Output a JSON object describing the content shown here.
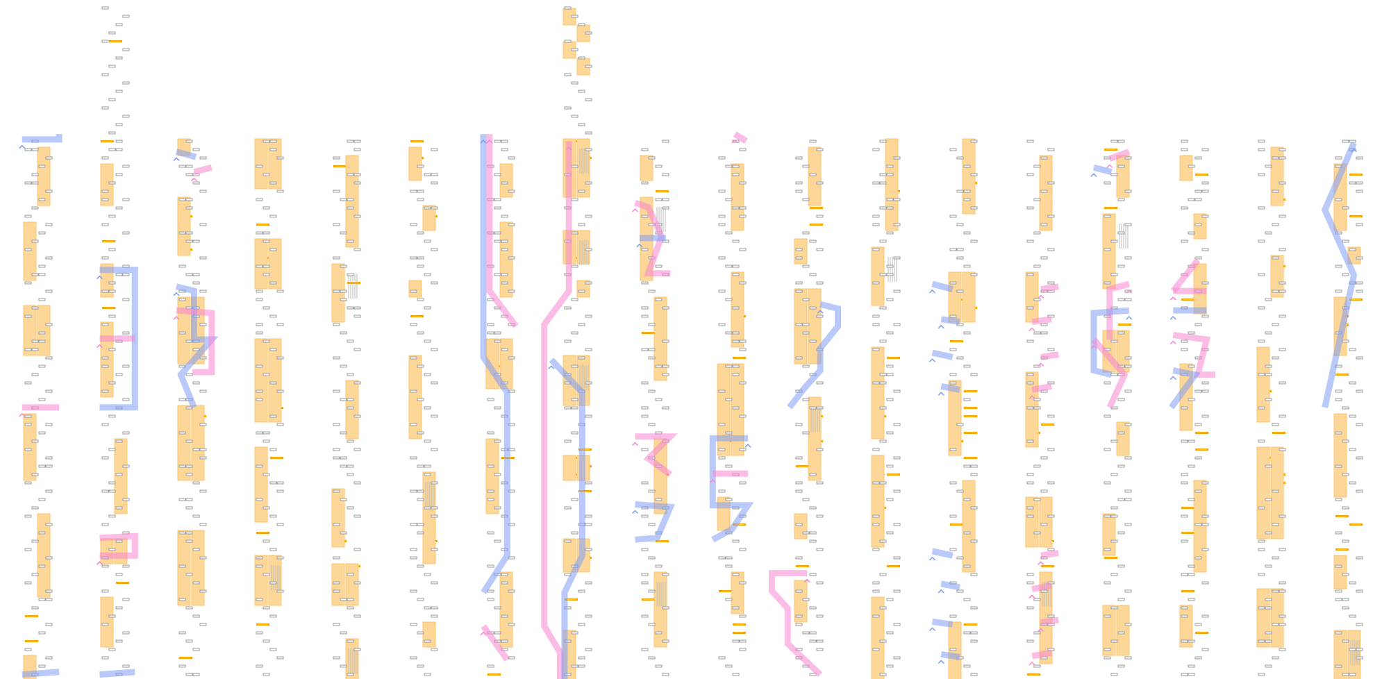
{
  "diagram": {
    "column_count": 18,
    "colors": {
      "background": "#ffffff",
      "slot_stroke": "#9a9a9a",
      "slot_fill": "#ffffff",
      "block_fill": "#fdd797",
      "block_stroke": "#f9c46f",
      "bar_fill": "#f4a300",
      "bar_core": "#ffd400",
      "blue_path": "#7f9cf5",
      "pink_path": "#f785d1"
    },
    "legend": []
  }
}
